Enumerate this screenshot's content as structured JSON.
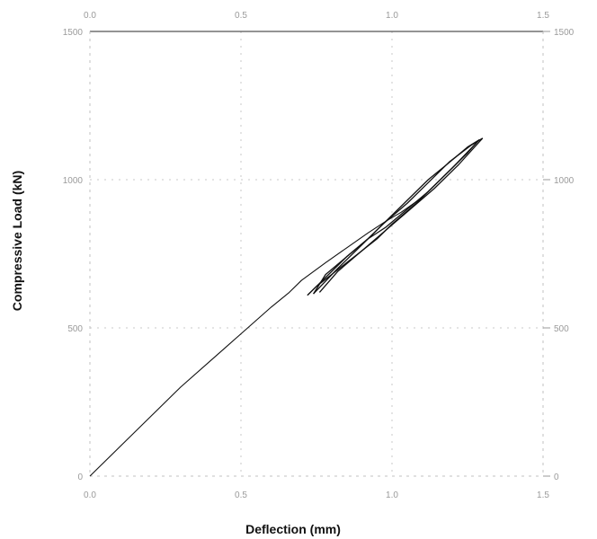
{
  "chart_data": {
    "type": "line",
    "xlabel": "Deflection (mm)",
    "ylabel": "Compressive Load (kN)",
    "xlim": [
      0,
      1.5
    ],
    "ylim": [
      0,
      1500
    ],
    "x_ticks": [
      "0.0",
      "0.5",
      "1.0",
      "1.5"
    ],
    "y_ticks": [
      "0",
      "500",
      "1000",
      "1500"
    ],
    "y_ticks_right": [
      "0",
      "500",
      "1000",
      "1500"
    ],
    "grid": true,
    "legend": "none",
    "series": [
      {
        "x": [
          0.0,
          0.05,
          0.1,
          0.2,
          0.3,
          0.4,
          0.5,
          0.6,
          0.66,
          0.7,
          0.78,
          0.85,
          0.92,
          0.98,
          1.03,
          1.1,
          1.15,
          1.2,
          1.25,
          1.28
        ],
        "y": [
          0,
          50,
          100,
          200,
          300,
          390,
          480,
          570,
          620,
          660,
          720,
          770,
          820,
          860,
          890,
          940,
          990,
          1040,
          1090,
          1125
        ]
      },
      {
        "x": [
          1.28,
          1.22,
          1.15,
          1.08,
          1.0,
          0.95,
          0.9,
          0.85,
          0.8,
          0.75,
          0.72
        ],
        "y": [
          1125,
          1060,
          990,
          920,
          850,
          800,
          760,
          720,
          680,
          640,
          610
        ]
      },
      {
        "x": [
          0.72,
          0.78,
          0.85,
          0.92,
          1.0,
          1.05,
          1.12,
          1.18,
          1.25,
          1.29
        ],
        "y": [
          610,
          670,
          740,
          800,
          880,
          930,
          1000,
          1050,
          1110,
          1135
        ]
      },
      {
        "x": [
          1.29,
          1.2,
          1.12,
          1.05,
          0.98,
          0.92,
          0.85,
          0.78,
          0.74
        ],
        "y": [
          1135,
          1040,
          960,
          900,
          840,
          800,
          740,
          680,
          615
        ]
      },
      {
        "x": [
          0.74,
          0.82,
          0.9,
          0.97,
          1.05,
          1.12,
          1.19,
          1.26,
          1.3
        ],
        "y": [
          615,
          700,
          780,
          850,
          920,
          990,
          1060,
          1115,
          1140
        ]
      },
      {
        "x": [
          1.3,
          1.22,
          1.14,
          1.06,
          0.98,
          0.9,
          0.82,
          0.76
        ],
        "y": [
          1140,
          1050,
          970,
          900,
          830,
          760,
          690,
          620
        ]
      }
    ]
  }
}
